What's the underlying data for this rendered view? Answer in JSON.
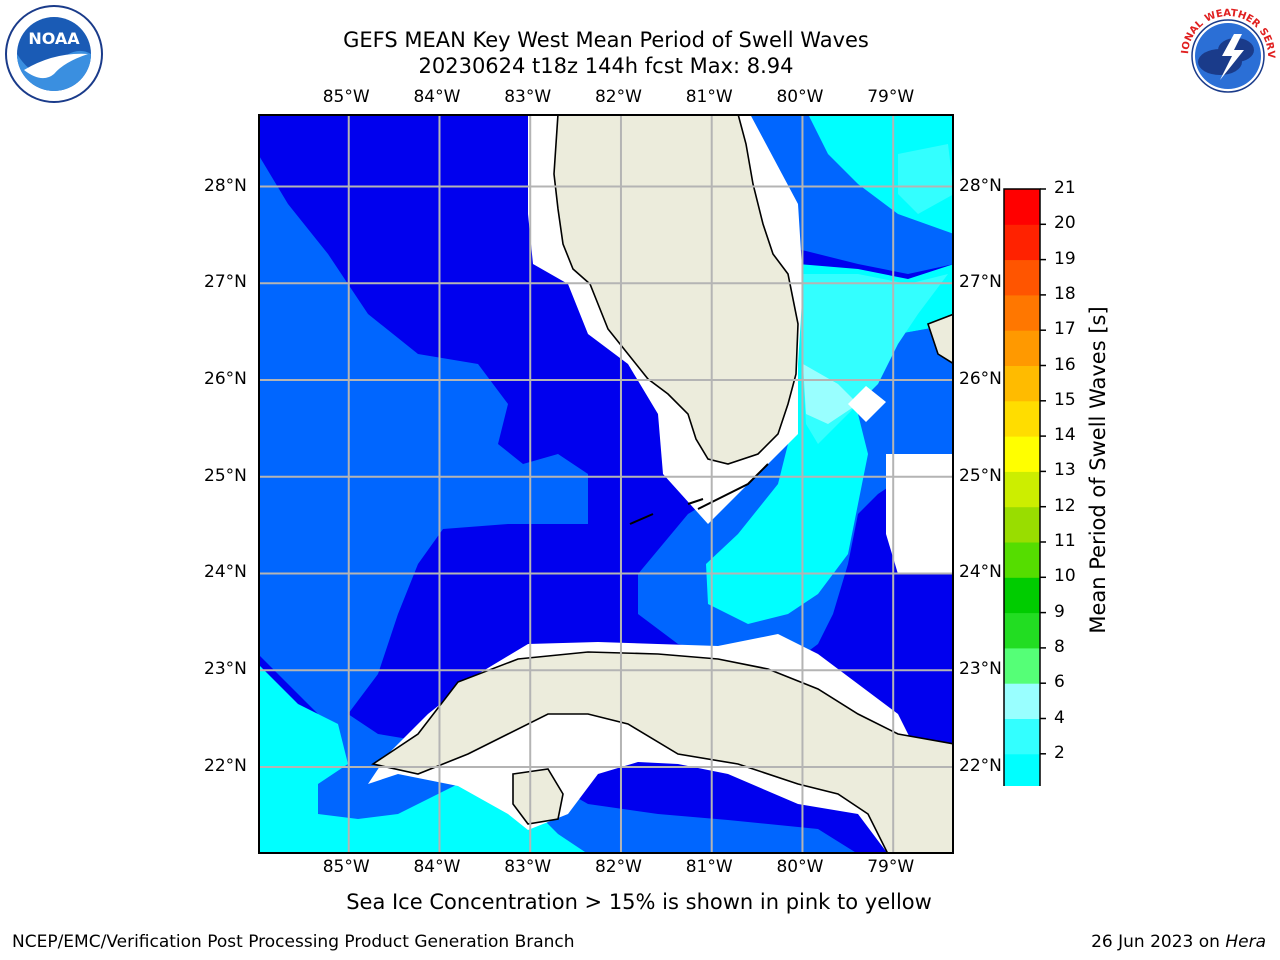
{
  "title": {
    "line1": "GEFS MEAN Key West Mean Period of Swell Waves",
    "line2": "20230624 t18z 144h fcst   Max: 8.94"
  },
  "logos": {
    "left": {
      "icon": "noaa-logo",
      "text": "NOAA",
      "ring_text": "NATIONAL OCEANIC AND ATMOSPHERIC ADMINISTRATION · U.S. DEPARTMENT OF COMMERCE"
    },
    "right": {
      "icon": "nws-logo",
      "ring_text": "NATIONAL WEATHER SERVICE"
    }
  },
  "map": {
    "lon_labels": [
      "85°W",
      "84°W",
      "83°W",
      "82°W",
      "81°W",
      "80°W",
      "79°W"
    ],
    "lat_labels": [
      "28°N",
      "27°N",
      "26°N",
      "25°N",
      "24°N",
      "23°N",
      "22°N"
    ],
    "lon_range": [
      -86.0,
      -78.33
    ],
    "lat_range": [
      21.1,
      28.75
    ],
    "land_color": "#ececdc",
    "grid_color": "#b4b4b4"
  },
  "colorbar": {
    "label": "Mean Period of Swell Waves [s]",
    "ticks": [
      "21",
      "20",
      "19",
      "18",
      "17",
      "16",
      "15",
      "14",
      "13",
      "12",
      "11",
      "10",
      "9",
      "8",
      "6",
      "4",
      "2"
    ],
    "levels": [
      2,
      4,
      6,
      8,
      9,
      10,
      11,
      12,
      13,
      14,
      15,
      16,
      17,
      18,
      19,
      20,
      21
    ],
    "colors": [
      "#0066ff",
      "#00ffff",
      "#33ffff",
      "#99ffff",
      "#55ff77",
      "#22dd22",
      "#00cc00",
      "#55dd00",
      "#99dd00",
      "#ccee00",
      "#ffff00",
      "#ffdd00",
      "#ffbb00",
      "#ff9900",
      "#ff7700",
      "#ff5500",
      "#ff2200",
      "#ff0000"
    ],
    "under_color": "#0000ee"
  },
  "chart_data": {
    "type": "heatmap",
    "title": "GEFS MEAN Key West Mean Period of Swell Waves",
    "subtitle": "20230624 t18z 144h fcst   Max: 8.94",
    "variable": "Mean Period of Swell Waves [s]",
    "max_value": 8.94,
    "x_ticks": [
      "85°W",
      "84°W",
      "83°W",
      "82°W",
      "81°W",
      "80°W",
      "79°W"
    ],
    "y_ticks": [
      "28°N",
      "27°N",
      "26°N",
      "25°N",
      "24°N",
      "23°N",
      "22°N"
    ],
    "color_levels": [
      2,
      4,
      6,
      8,
      9,
      10,
      11,
      12,
      13,
      14,
      15,
      16,
      17,
      18,
      19,
      20,
      21
    ]
  },
  "note": "Sea Ice Concentration > 15% is shown in pink to yellow",
  "footer": {
    "left": "NCEP/EMC/Verification Post Processing Product Generation Branch",
    "date": "26 Jun 2023 on",
    "host": "Hera"
  }
}
